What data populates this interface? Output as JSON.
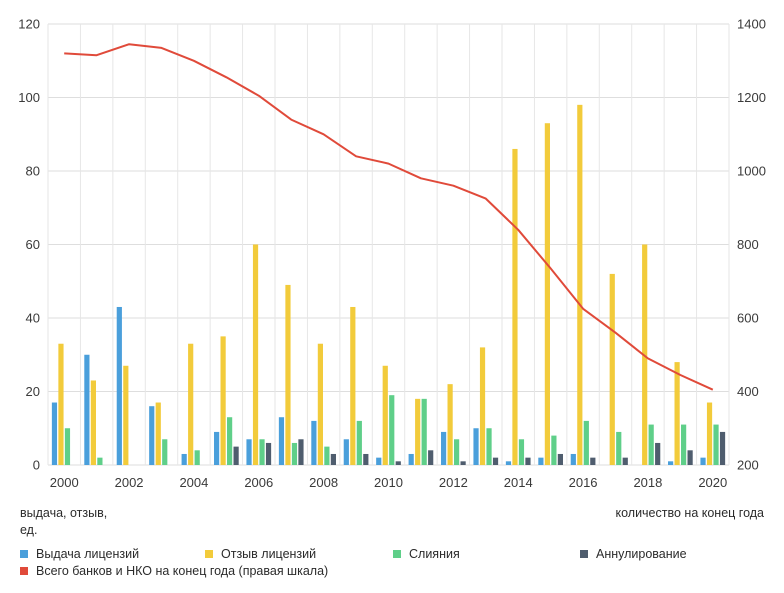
{
  "chart_data": {
    "type": "bar+line",
    "categories": [
      2000,
      2001,
      2002,
      2003,
      2004,
      2005,
      2006,
      2007,
      2008,
      2009,
      2010,
      2011,
      2012,
      2013,
      2014,
      2015,
      2016,
      2017,
      2018,
      2019,
      2020
    ],
    "x_tick_labels": [
      "2000",
      "2002",
      "2004",
      "2006",
      "2008",
      "2010",
      "2012",
      "2014",
      "2016",
      "2018",
      "2020"
    ],
    "left_axis": {
      "label": "выдача, отзыв, ед.",
      "label_line1": "выдача, отзыв,",
      "label_line2": "ед.",
      "ylim": [
        0,
        120
      ],
      "ticks": [
        "0",
        "20",
        "40",
        "60",
        "80",
        "100",
        "120"
      ]
    },
    "right_axis": {
      "label": "количество на конец года",
      "ylim": [
        200,
        1400
      ],
      "ticks": [
        "200",
        "400",
        "600",
        "800",
        "1000",
        "1200",
        "1400"
      ]
    },
    "bar_series": [
      {
        "name": "Выдача лицензий",
        "color": "#4a9fdb",
        "values": [
          17,
          30,
          43,
          16,
          3,
          9,
          7,
          13,
          12,
          7,
          2,
          3,
          9,
          10,
          1,
          2,
          3,
          0,
          0,
          1,
          2
        ]
      },
      {
        "name": "Отзыв лицензий",
        "color": "#f2cb3b",
        "values": [
          33,
          23,
          27,
          17,
          33,
          35,
          60,
          49,
          33,
          43,
          27,
          18,
          22,
          32,
          86,
          93,
          98,
          52,
          60,
          28,
          17
        ]
      },
      {
        "name": "Слияния",
        "color": "#5fcf89",
        "values": [
          10,
          2,
          0,
          7,
          4,
          13,
          7,
          6,
          5,
          12,
          19,
          18,
          7,
          10,
          7,
          8,
          12,
          9,
          11,
          11,
          11
        ]
      },
      {
        "name": "Аннулирование",
        "color": "#4f5d6e",
        "values": [
          0,
          0,
          0,
          0,
          0,
          5,
          6,
          7,
          3,
          3,
          1,
          4,
          1,
          2,
          2,
          3,
          2,
          2,
          6,
          4,
          9
        ]
      }
    ],
    "line_series": {
      "name": "Всего банков и НКО на конец года (правая шкала)",
      "color": "#e04a3a",
      "values": [
        1320,
        1315,
        1345,
        1335,
        1300,
        1255,
        1205,
        1140,
        1100,
        1040,
        1020,
        980,
        960,
        925,
        840,
        735,
        625,
        560,
        490,
        445,
        405
      ]
    }
  },
  "legend": [
    {
      "label": "Выдача лицензий",
      "color": "#4a9fdb"
    },
    {
      "label": "Отзыв лицензий",
      "color": "#f2cb3b"
    },
    {
      "label": "Слияния",
      "color": "#5fcf89"
    },
    {
      "label": "Аннулирование",
      "color": "#4f5d6e"
    },
    {
      "label": "Всего банков и НКО на конец года (правая шкала)",
      "color": "#e04a3a"
    }
  ]
}
